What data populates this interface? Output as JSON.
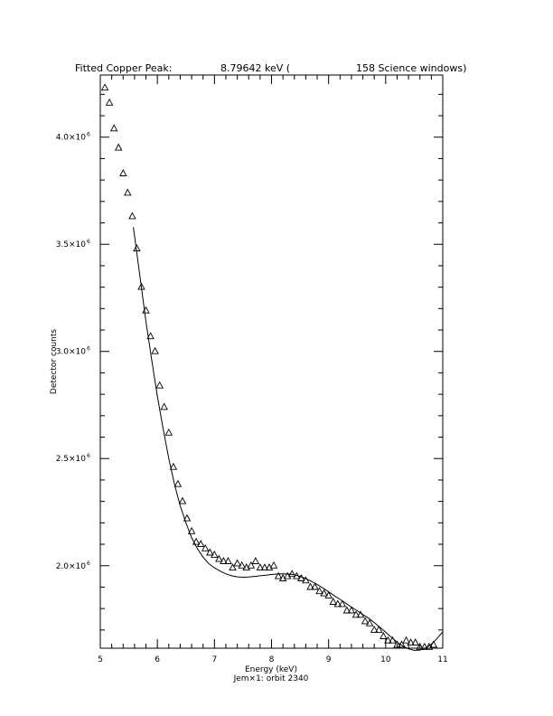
{
  "chart_data": {
    "type": "scatter",
    "title_parts": [
      "Fitted Copper Peak:",
      "8.79642 keV (",
      "158 Science windows)"
    ],
    "xlabel": "Energy (keV)",
    "ylabel": "Detector counts",
    "footer": "Jem×1: orbit 2340",
    "xlim": [
      5,
      11
    ],
    "ylim": [
      1615000,
      4290000
    ],
    "x_ticks": [
      {
        "value": 5,
        "label": "5"
      },
      {
        "value": 6,
        "label": "6"
      },
      {
        "value": 7,
        "label": "7"
      },
      {
        "value": 8,
        "label": "8"
      },
      {
        "value": 9,
        "label": "9"
      },
      {
        "value": 10,
        "label": "10"
      },
      {
        "value": 11,
        "label": "11"
      }
    ],
    "y_ticks": [
      {
        "value": 2000000,
        "mantissa": "2.0×10",
        "exp": "6"
      },
      {
        "value": 2500000,
        "mantissa": "2.5×10",
        "exp": "6"
      },
      {
        "value": 3000000,
        "mantissa": "3.0×10",
        "exp": "6"
      },
      {
        "value": 3500000,
        "mantissa": "3.5×10",
        "exp": "6"
      },
      {
        "value": 4000000,
        "mantissa": "4.0×10",
        "exp": "6"
      }
    ],
    "x_minor_step": 0.2,
    "y_minor_step": 100000,
    "grid": false,
    "series": [
      {
        "style": "open-triangle-markers",
        "x": [
          5.08,
          5.16,
          5.24,
          5.32,
          5.4,
          5.48,
          5.56,
          5.64,
          5.72,
          5.8,
          5.88,
          5.96,
          6.04,
          6.12,
          6.2,
          6.28,
          6.36,
          6.44,
          6.52,
          6.6,
          6.68,
          6.76,
          6.84,
          6.92,
          7.0,
          7.08,
          7.16,
          7.24,
          7.32,
          7.4,
          7.48,
          7.56,
          7.64,
          7.72,
          7.8,
          7.88,
          7.96,
          8.04,
          8.12,
          8.2,
          8.28,
          8.36,
          8.44,
          8.52,
          8.6,
          8.68,
          8.76,
          8.84,
          8.92,
          9.0,
          9.08,
          9.16,
          9.24,
          9.32,
          9.4,
          9.48,
          9.56,
          9.64,
          9.72,
          9.8,
          9.88,
          9.96,
          10.04,
          10.12,
          10.2,
          10.28,
          10.36,
          10.44,
          10.52,
          10.6,
          10.68,
          10.76,
          10.84
        ],
        "y": [
          4230000,
          4160000,
          4040000,
          3950000,
          3830000,
          3740000,
          3630000,
          3480000,
          3300000,
          3190000,
          3070000,
          3000000,
          2840000,
          2740000,
          2620000,
          2460000,
          2380000,
          2300000,
          2220000,
          2160000,
          2110000,
          2100000,
          2080000,
          2060000,
          2050000,
          2030000,
          2020000,
          2020000,
          1990000,
          2010000,
          2000000,
          1990000,
          2000000,
          2020000,
          1990000,
          1990000,
          1990000,
          2000000,
          1950000,
          1940000,
          1950000,
          1960000,
          1950000,
          1940000,
          1930000,
          1900000,
          1900000,
          1880000,
          1870000,
          1860000,
          1830000,
          1820000,
          1820000,
          1790000,
          1790000,
          1770000,
          1770000,
          1740000,
          1730000,
          1700000,
          1700000,
          1670000,
          1650000,
          1650000,
          1630000,
          1630000,
          1650000,
          1640000,
          1640000,
          1620000,
          1620000,
          1620000,
          1630000
        ]
      },
      {
        "style": "solid-line",
        "x": [
          5.58,
          5.7,
          5.8,
          5.9,
          6.0,
          6.1,
          6.2,
          6.3,
          6.4,
          6.5,
          6.6,
          6.7,
          6.8,
          6.9,
          7.0,
          7.1,
          7.2,
          7.3,
          7.4,
          7.5,
          7.6,
          7.7,
          7.8,
          7.9,
          8.0,
          8.1,
          8.2,
          8.3,
          8.4,
          8.5,
          8.6,
          8.7,
          8.8,
          8.9,
          9.0,
          9.1,
          9.2,
          9.3,
          9.4,
          9.5,
          9.6,
          9.7,
          9.8,
          9.9,
          10.0,
          10.1,
          10.2,
          10.3,
          10.4,
          10.5,
          10.6,
          10.7,
          10.8,
          10.9,
          11.0
        ],
        "y": [
          3580000,
          3340000,
          3140000,
          2960000,
          2790000,
          2640000,
          2500000,
          2380000,
          2280000,
          2200000,
          2130000,
          2080000,
          2040000,
          2010000,
          1990000,
          1975000,
          1962000,
          1953000,
          1948000,
          1946000,
          1947000,
          1950000,
          1953000,
          1956000,
          1959000,
          1961000,
          1962000,
          1961000,
          1958000,
          1950000,
          1940000,
          1927000,
          1912000,
          1896000,
          1878000,
          1860000,
          1843000,
          1825000,
          1807000,
          1790000,
          1772000,
          1755000,
          1735000,
          1712000,
          1690000,
          1666000,
          1643000,
          1625000,
          1612000,
          1605000,
          1606000,
          1616000,
          1634000,
          1660000,
          1692000
        ]
      }
    ]
  }
}
